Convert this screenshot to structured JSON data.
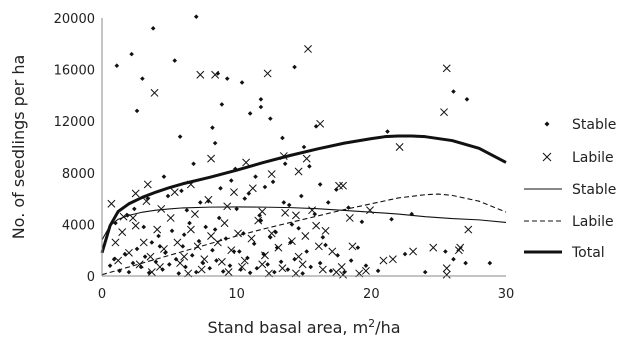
{
  "chart_data": {
    "type": "scatter",
    "xlabel": "Stand basal area, m²/ha",
    "ylabel": "No. of seedlings per ha",
    "xlim": [
      0,
      30
    ],
    "ylim": [
      0,
      20000
    ],
    "x_ticks": [
      "0",
      "10",
      "20",
      "30"
    ],
    "y_ticks": [
      "0",
      "4000",
      "8000",
      "12000",
      "16000",
      "20000"
    ],
    "legend_position": "right",
    "grid": false,
    "series": [
      {
        "name": "Stable",
        "kind": "points",
        "marker": "diamond",
        "color": "#111111",
        "points": [
          [
            1.1,
            16300
          ],
          [
            2.2,
            17200
          ],
          [
            3.0,
            15300
          ],
          [
            3.8,
            19200
          ],
          [
            5.4,
            16700
          ],
          [
            7.0,
            20100
          ],
          [
            8.6,
            15700
          ],
          [
            9.3,
            15300
          ],
          [
            10.4,
            15000
          ],
          [
            14.3,
            16200
          ],
          [
            2.6,
            12800
          ],
          [
            5.8,
            10800
          ],
          [
            8.2,
            11500
          ],
          [
            8.9,
            13300
          ],
          [
            11.0,
            12600
          ],
          [
            11.8,
            13700
          ],
          [
            12.5,
            12200
          ],
          [
            13.4,
            10700
          ],
          [
            15.0,
            10000
          ],
          [
            8.4,
            10300
          ],
          [
            15.9,
            11600
          ],
          [
            21.2,
            11200
          ],
          [
            27.1,
            13700
          ],
          [
            26.1,
            14300
          ],
          [
            11.8,
            13100
          ],
          [
            0.6,
            800
          ],
          [
            0.9,
            1300
          ],
          [
            1.3,
            400
          ],
          [
            1.7,
            1700
          ],
          [
            2.0,
            300
          ],
          [
            2.3,
            1000
          ],
          [
            2.6,
            2100
          ],
          [
            2.9,
            700
          ],
          [
            3.2,
            1500
          ],
          [
            3.5,
            250
          ],
          [
            3.7,
            2600
          ],
          [
            4.0,
            1100
          ],
          [
            4.2,
            3100
          ],
          [
            4.5,
            500
          ],
          [
            4.7,
            1800
          ],
          [
            5.0,
            900
          ],
          [
            5.2,
            3500
          ],
          [
            5.5,
            1300
          ],
          [
            5.7,
            200
          ],
          [
            6.0,
            2300
          ],
          [
            6.2,
            700
          ],
          [
            6.5,
            4100
          ],
          [
            6.7,
            1600
          ],
          [
            7.0,
            300
          ],
          [
            7.2,
            2700
          ],
          [
            7.5,
            1000
          ],
          [
            7.7,
            3800
          ],
          [
            8.0,
            600
          ],
          [
            8.2,
            2000
          ],
          [
            8.5,
            1200
          ],
          [
            8.7,
            4500
          ],
          [
            9.0,
            350
          ],
          [
            9.2,
            2900
          ],
          [
            9.5,
            800
          ],
          [
            9.8,
            1900
          ],
          [
            10.0,
            5200
          ],
          [
            10.3,
            500
          ],
          [
            10.5,
            3300
          ],
          [
            10.8,
            1400
          ],
          [
            11.0,
            250
          ],
          [
            11.3,
            2500
          ],
          [
            11.5,
            600
          ],
          [
            11.8,
            4300
          ],
          [
            12.0,
            1700
          ],
          [
            12.3,
            900
          ],
          [
            12.5,
            3000
          ],
          [
            12.8,
            300
          ],
          [
            13.0,
            2200
          ],
          [
            13.3,
            1100
          ],
          [
            13.5,
            5700
          ],
          [
            13.8,
            500
          ],
          [
            14.0,
            2600
          ],
          [
            14.3,
            1300
          ],
          [
            14.6,
            3700
          ],
          [
            14.9,
            200
          ],
          [
            15.2,
            1900
          ],
          [
            15.5,
            700
          ],
          [
            15.8,
            4800
          ],
          [
            16.2,
            1000
          ],
          [
            16.6,
            2400
          ],
          [
            17.0,
            400
          ],
          [
            17.5,
            1600
          ],
          [
            18.0,
            300
          ],
          [
            18.5,
            1200
          ],
          [
            19.0,
            2200
          ],
          [
            19.6,
            800
          ],
          [
            20.5,
            400
          ],
          [
            21.5,
            4400
          ],
          [
            22.5,
            1700
          ],
          [
            24.0,
            300
          ],
          [
            25.5,
            1900
          ],
          [
            27.0,
            1000
          ],
          [
            28.8,
            1000
          ],
          [
            3.4,
            6000
          ],
          [
            4.6,
            7700
          ],
          [
            5.9,
            6600
          ],
          [
            7.3,
            5700
          ],
          [
            9.6,
            7400
          ],
          [
            10.9,
            6400
          ],
          [
            12.7,
            7300
          ],
          [
            14.8,
            6200
          ],
          [
            16.2,
            7100
          ],
          [
            17.4,
            6700
          ],
          [
            13.6,
            8700
          ],
          [
            6.8,
            8700
          ],
          [
            1.9,
            4700
          ],
          [
            1.0,
            4100
          ],
          [
            2.4,
            5200
          ],
          [
            4.9,
            6200
          ],
          [
            6.3,
            5100
          ],
          [
            8.8,
            6800
          ],
          [
            11.4,
            7700
          ],
          [
            13.9,
            5500
          ],
          [
            16.8,
            5700
          ],
          [
            9.9,
            8300
          ],
          [
            3.1,
            3800
          ],
          [
            12.1,
            6900
          ],
          [
            15.4,
            8500
          ],
          [
            7.9,
            5800
          ],
          [
            10.6,
            6000
          ],
          [
            18.3,
            5300
          ],
          [
            23.0,
            4800
          ],
          [
            26.1,
            1300
          ],
          [
            6.1,
            3200
          ],
          [
            11.7,
            4700
          ],
          [
            14.1,
            4000
          ],
          [
            4.3,
            2300
          ],
          [
            8.4,
            3600
          ],
          [
            10.2,
            1900
          ],
          [
            12.9,
            3400
          ],
          [
            16.4,
            3000
          ],
          [
            19.3,
            4200
          ]
        ]
      },
      {
        "name": "Labile",
        "kind": "points",
        "marker": "x",
        "color": "#111111",
        "points": [
          [
            0.7,
            5600
          ],
          [
            1.6,
            4600
          ],
          [
            2.5,
            6400
          ],
          [
            3.4,
            7100
          ],
          [
            3.9,
            14200
          ],
          [
            7.3,
            15600
          ],
          [
            8.4,
            15600
          ],
          [
            15.3,
            17600
          ],
          [
            12.3,
            15700
          ],
          [
            8.1,
            9100
          ],
          [
            10.7,
            8800
          ],
          [
            13.5,
            9300
          ],
          [
            15.2,
            9100
          ],
          [
            16.2,
            11800
          ],
          [
            14.6,
            8100
          ],
          [
            22.1,
            10000
          ],
          [
            25.6,
            16100
          ],
          [
            25.4,
            12700
          ],
          [
            11.2,
            6800
          ],
          [
            12.6,
            7900
          ],
          [
            6.6,
            7100
          ],
          [
            9.8,
            6500
          ],
          [
            17.6,
            7000
          ],
          [
            19.9,
            5100
          ],
          [
            17.9,
            7000
          ],
          [
            27.2,
            3600
          ],
          [
            24.6,
            2200
          ],
          [
            26.5,
            2000
          ],
          [
            1.0,
            2600
          ],
          [
            1.5,
            3400
          ],
          [
            2.0,
            1800
          ],
          [
            2.5,
            3900
          ],
          [
            3.1,
            2600
          ],
          [
            3.6,
            1500
          ],
          [
            4.1,
            3600
          ],
          [
            4.6,
            2100
          ],
          [
            5.1,
            4500
          ],
          [
            5.6,
            2600
          ],
          [
            6.1,
            1500
          ],
          [
            6.6,
            3600
          ],
          [
            7.1,
            2300
          ],
          [
            7.6,
            1300
          ],
          [
            8.1,
            3100
          ],
          [
            8.6,
            2600
          ],
          [
            9.1,
            4100
          ],
          [
            9.6,
            2000
          ],
          [
            10.1,
            3300
          ],
          [
            10.6,
            1200
          ],
          [
            11.1,
            2900
          ],
          [
            11.6,
            4300
          ],
          [
            12.1,
            1600
          ],
          [
            12.6,
            3300
          ],
          [
            13.1,
            2200
          ],
          [
            13.6,
            4900
          ],
          [
            14.1,
            2700
          ],
          [
            14.6,
            1500
          ],
          [
            15.1,
            3100
          ],
          [
            15.6,
            5100
          ],
          [
            16.1,
            2300
          ],
          [
            16.6,
            3500
          ],
          [
            17.1,
            1900
          ],
          [
            17.8,
            700
          ],
          [
            18.6,
            2300
          ],
          [
            19.6,
            400
          ],
          [
            20.9,
            1200
          ],
          [
            21.6,
            1300
          ],
          [
            23.1,
            1900
          ],
          [
            25.6,
            600
          ],
          [
            25.6,
            100
          ],
          [
            26.6,
            2200
          ],
          [
            1.2,
            1200
          ],
          [
            2.8,
            900
          ],
          [
            4.3,
            700
          ],
          [
            5.8,
            1000
          ],
          [
            7.4,
            500
          ],
          [
            8.9,
            1100
          ],
          [
            10.4,
            700
          ],
          [
            11.9,
            900
          ],
          [
            13.4,
            600
          ],
          [
            14.9,
            900
          ],
          [
            16.4,
            500
          ],
          [
            17.9,
            100
          ],
          [
            19.1,
            200
          ],
          [
            2.3,
            4500
          ],
          [
            4.4,
            5200
          ],
          [
            6.9,
            4800
          ],
          [
            9.3,
            5400
          ],
          [
            11.9,
            5000
          ],
          [
            14.4,
            4700
          ],
          [
            15.9,
            3900
          ],
          [
            3.3,
            5800
          ],
          [
            5.4,
            6500
          ],
          [
            7.9,
            5900
          ],
          [
            18.4,
            4500
          ],
          [
            3.7,
            300
          ],
          [
            6.4,
            200
          ],
          [
            9.4,
            300
          ],
          [
            12.4,
            200
          ],
          [
            14.4,
            200
          ],
          [
            17.4,
            300
          ]
        ]
      },
      {
        "name": "Stable",
        "kind": "line",
        "style": "thin-solid",
        "color": "#111111",
        "points": [
          [
            0,
            2800
          ],
          [
            0.6,
            3900
          ],
          [
            1.2,
            4400
          ],
          [
            2,
            4700
          ],
          [
            3,
            4950
          ],
          [
            4,
            5100
          ],
          [
            5,
            5200
          ],
          [
            6,
            5280
          ],
          [
            8,
            5340
          ],
          [
            10,
            5350
          ],
          [
            12,
            5340
          ],
          [
            14,
            5300
          ],
          [
            16,
            5220
          ],
          [
            18,
            5080
          ],
          [
            20,
            4950
          ],
          [
            22,
            4800
          ],
          [
            24,
            4600
          ],
          [
            26,
            4450
          ],
          [
            28,
            4350
          ],
          [
            30,
            4150
          ]
        ]
      },
      {
        "name": "Labile",
        "kind": "line",
        "style": "dashed",
        "color": "#111111",
        "points": [
          [
            0,
            100
          ],
          [
            2,
            700
          ],
          [
            4,
            1300
          ],
          [
            6,
            1900
          ],
          [
            8,
            2500
          ],
          [
            10,
            3100
          ],
          [
            12,
            3650
          ],
          [
            14,
            4150
          ],
          [
            16,
            4650
          ],
          [
            18,
            5150
          ],
          [
            20,
            5600
          ],
          [
            22,
            6050
          ],
          [
            24,
            6300
          ],
          [
            25,
            6350
          ],
          [
            26,
            6250
          ],
          [
            28,
            5800
          ],
          [
            30,
            4950
          ]
        ]
      },
      {
        "name": "Total",
        "kind": "line",
        "style": "thick-solid",
        "color": "#111111",
        "points": [
          [
            0,
            1800
          ],
          [
            0.6,
            3900
          ],
          [
            1.2,
            5000
          ],
          [
            2,
            5600
          ],
          [
            3,
            6100
          ],
          [
            4,
            6500
          ],
          [
            5,
            6850
          ],
          [
            6,
            7150
          ],
          [
            8,
            7650
          ],
          [
            10,
            8200
          ],
          [
            12,
            8800
          ],
          [
            14,
            9350
          ],
          [
            16,
            9850
          ],
          [
            18,
            10300
          ],
          [
            20,
            10650
          ],
          [
            21,
            10800
          ],
          [
            22,
            10850
          ],
          [
            23,
            10850
          ],
          [
            24,
            10800
          ],
          [
            26,
            10500
          ],
          [
            28,
            9900
          ],
          [
            30,
            8800
          ]
        ]
      }
    ]
  }
}
